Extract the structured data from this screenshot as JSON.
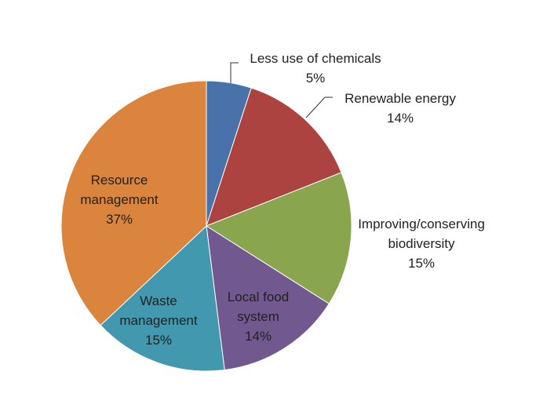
{
  "chart_data": {
    "type": "pie",
    "title": "",
    "slices": [
      {
        "label_lines": [
          "Less use of chemicals"
        ],
        "pct_label": "5%",
        "value": 5,
        "color": "#4a72aa"
      },
      {
        "label_lines": [
          "Renewable energy"
        ],
        "pct_label": "14%",
        "value": 14,
        "color": "#ac4341"
      },
      {
        "label_lines": [
          "Improving/conserving",
          "biodiversity"
        ],
        "pct_label": "15%",
        "value": 15,
        "color": "#89a54e"
      },
      {
        "label_lines": [
          "Local food",
          "system"
        ],
        "pct_label": "14%",
        "value": 14,
        "color": "#71588f"
      },
      {
        "label_lines": [
          "Waste",
          "management"
        ],
        "pct_label": "15%",
        "value": 15,
        "color": "#4198af"
      },
      {
        "label_lines": [
          "Resource",
          "management"
        ],
        "pct_label": "37%",
        "value": 37,
        "color": "#db843d"
      }
    ],
    "start_angle_deg": 0,
    "direction": "clockwise",
    "legend": "none"
  }
}
